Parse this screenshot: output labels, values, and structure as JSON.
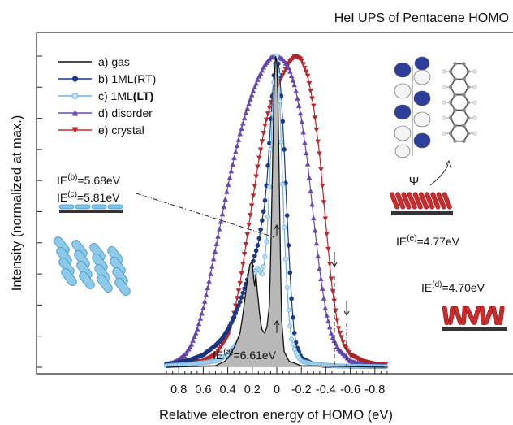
{
  "chart_data": {
    "type": "line",
    "title": "HeI UPS of Pentacene HOMO",
    "xlabel": "Relative electron energy of HOMO (eV)",
    "ylabel": "Intensity (normalized at max.)",
    "xlim": [
      0.9,
      -0.9
    ],
    "ylim": [
      0,
      1.08
    ],
    "x_reversed": true,
    "grid": false,
    "legend_position": "top-left",
    "x_ticks": [
      0.8,
      0.6,
      0.4,
      0.2,
      0.0,
      -0.2,
      -0.4,
      -0.6,
      -0.8
    ],
    "x_tick_labels": [
      "0.8",
      "0.6",
      "0.4",
      "0.2",
      "0",
      "-0.2",
      "-0.4",
      "-0.6",
      "-0.8"
    ],
    "series": [
      {
        "name": "a) gas",
        "label_main": "a) gas",
        "label_bold": "",
        "label_end": "",
        "color": "#111111",
        "marker": "line",
        "fill": true,
        "x": [
          0.9,
          0.5,
          0.42,
          0.38,
          0.34,
          0.3,
          0.28,
          0.26,
          0.24,
          0.22,
          0.2,
          0.19,
          0.18,
          0.17,
          0.16,
          0.15,
          0.14,
          0.13,
          0.12,
          0.1,
          0.08,
          0.06,
          0.05,
          0.04,
          0.03,
          0.02,
          0.01,
          0.0,
          -0.01,
          -0.02,
          -0.03,
          -0.04,
          -0.06,
          -0.1,
          -0.2,
          -0.9
        ],
        "y": [
          0,
          0.005,
          0.02,
          0.04,
          0.07,
          0.11,
          0.16,
          0.22,
          0.28,
          0.33,
          0.34,
          0.29,
          0.26,
          0.3,
          0.25,
          0.21,
          0.17,
          0.14,
          0.12,
          0.11,
          0.13,
          0.2,
          0.35,
          0.55,
          0.75,
          0.93,
          1.0,
          0.98,
          0.85,
          0.6,
          0.35,
          0.15,
          0.05,
          0.02,
          0.005,
          0
        ]
      },
      {
        "name": "b) 1ML(RT)",
        "label_main": "b) 1ML(RT)",
        "label_bold": "",
        "label_end": "",
        "color": "#1c3a8c",
        "marker": "circle",
        "x": [
          0.9,
          0.8,
          0.7,
          0.6,
          0.5,
          0.45,
          0.4,
          0.35,
          0.3,
          0.25,
          0.2,
          0.15,
          0.1,
          0.08,
          0.06,
          0.04,
          0.02,
          0.0,
          -0.02,
          -0.04,
          -0.06,
          -0.08,
          -0.1,
          -0.12,
          -0.14,
          -0.16,
          -0.2,
          -0.3,
          -0.4,
          -0.6,
          -0.9
        ],
        "y": [
          0.01,
          0.015,
          0.025,
          0.04,
          0.07,
          0.09,
          0.12,
          0.16,
          0.21,
          0.27,
          0.33,
          0.4,
          0.52,
          0.6,
          0.72,
          0.85,
          0.96,
          1.0,
          0.96,
          0.85,
          0.7,
          0.52,
          0.36,
          0.22,
          0.12,
          0.07,
          0.03,
          0.01,
          0.005,
          0.003,
          0.002
        ]
      },
      {
        "name": "c) 1ML(LT)",
        "label_main": "c) 1ML",
        "label_bold": "(LT)",
        "label_end": "",
        "color": "#6eb2e0",
        "marker": "circle-open",
        "x": [
          0.9,
          0.7,
          0.5,
          0.4,
          0.3,
          0.25,
          0.2,
          0.18,
          0.16,
          0.14,
          0.12,
          0.1,
          0.08,
          0.06,
          0.04,
          0.02,
          0.0,
          -0.02,
          -0.04,
          -0.06,
          -0.08,
          -0.1,
          -0.12,
          -0.15,
          -0.2,
          -0.3,
          -0.5,
          -0.9
        ],
        "y": [
          0.005,
          0.01,
          0.02,
          0.04,
          0.09,
          0.15,
          0.25,
          0.3,
          0.32,
          0.31,
          0.3,
          0.34,
          0.42,
          0.58,
          0.78,
          0.95,
          1.0,
          0.9,
          0.68,
          0.45,
          0.28,
          0.16,
          0.09,
          0.05,
          0.02,
          0.01,
          0.004,
          0.002
        ]
      },
      {
        "name": "d) disorder",
        "label_main": "d) disorder",
        "label_bold": "",
        "label_end": "",
        "color": "#6a48b8",
        "marker": "triangle-up",
        "x": [
          0.9,
          0.85,
          0.8,
          0.75,
          0.7,
          0.65,
          0.6,
          0.55,
          0.5,
          0.45,
          0.4,
          0.35,
          0.3,
          0.25,
          0.2,
          0.15,
          0.1,
          0.05,
          0.0,
          -0.05,
          -0.1,
          -0.15,
          -0.2,
          -0.25,
          -0.3,
          -0.35,
          -0.4,
          -0.45,
          -0.5,
          -0.55,
          -0.6,
          -0.65,
          -0.7,
          -0.75,
          -0.8,
          -0.85,
          -0.9
        ],
        "y": [
          0.01,
          0.015,
          0.025,
          0.04,
          0.07,
          0.12,
          0.19,
          0.28,
          0.38,
          0.48,
          0.58,
          0.67,
          0.75,
          0.82,
          0.88,
          0.93,
          0.97,
          0.995,
          1.0,
          0.99,
          0.96,
          0.9,
          0.8,
          0.66,
          0.48,
          0.31,
          0.18,
          0.1,
          0.06,
          0.04,
          0.02,
          0.015,
          0.01,
          0.008,
          0.006,
          0.005,
          0.004
        ]
      },
      {
        "name": "e) crystal",
        "label_main": "e) crystal",
        "label_bold": "",
        "label_end": "",
        "color": "#c0282e",
        "marker": "triangle-down",
        "x": [
          0.9,
          0.8,
          0.7,
          0.6,
          0.5,
          0.4,
          0.35,
          0.3,
          0.25,
          0.2,
          0.15,
          0.1,
          0.05,
          0.0,
          -0.05,
          -0.1,
          -0.15,
          -0.2,
          -0.25,
          -0.3,
          -0.35,
          -0.4,
          -0.45,
          -0.5,
          -0.55,
          -0.6,
          -0.7,
          -0.8,
          -0.9
        ],
        "y": [
          0.01,
          0.01,
          0.015,
          0.02,
          0.04,
          0.1,
          0.17,
          0.27,
          0.4,
          0.53,
          0.66,
          0.77,
          0.85,
          0.9,
          0.94,
          0.98,
          1.0,
          0.99,
          0.94,
          0.84,
          0.68,
          0.46,
          0.26,
          0.13,
          0.07,
          0.04,
          0.02,
          0.01,
          0.01
        ]
      }
    ],
    "annotations": [
      {
        "base": "IE",
        "sup": "(b)",
        "rest": "=5.68eV",
        "at_x": 0.0,
        "at_y": 0.42
      },
      {
        "base": "IE",
        "sup": "(c)",
        "rest": "=5.81eV"
      },
      {
        "base": "IE",
        "sup": "(a)",
        "rest": "=6.61eV",
        "at_x": 0.0,
        "at_y": 0.14
      },
      {
        "base": "IE",
        "sup": "(e)",
        "rest": "=4.77eV",
        "at_x": -0.47
      },
      {
        "base": "IE",
        "sup": "(d)",
        "rest": "=4.70eV",
        "at_x": -0.57
      }
    ],
    "inset_symbol": "Ψ"
  }
}
